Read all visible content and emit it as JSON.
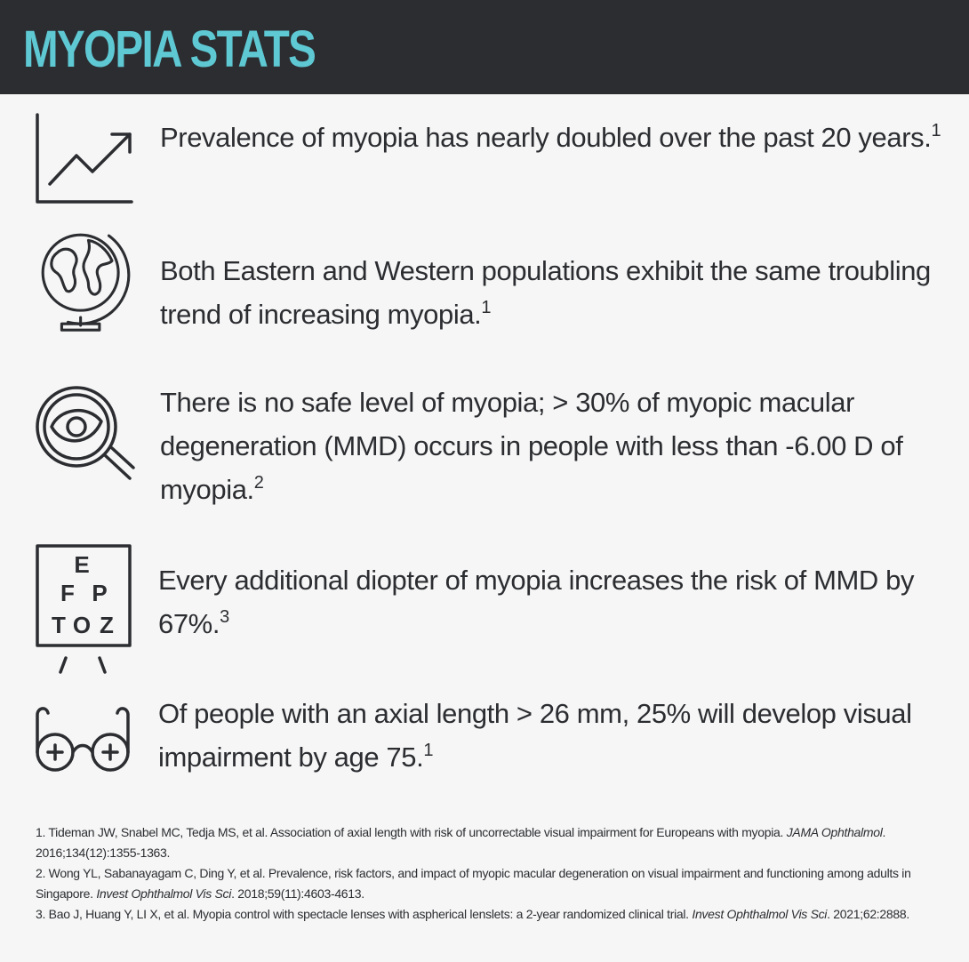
{
  "header": {
    "title": "MYOPIA STATS"
  },
  "items": [
    {
      "text": "Prevalence of myopia has nearly doubled over the past 20 years.",
      "ref": "1"
    },
    {
      "text": "Both Eastern and Western populations exhibit the same troubling trend of increasing myopia.",
      "ref": "1"
    },
    {
      "text": "There is no safe level of myopia; > 30% of myopic macular degeneration (MMD) occurs in people with less than -6.00 D of myopia.",
      "ref": "2"
    },
    {
      "text": "Every additional diopter of myopia increases the risk of MMD by 67%.",
      "ref": "3"
    },
    {
      "text": "Of people with an axial length > 26 mm, 25% will develop visual impairment by age 75.",
      "ref": "1"
    }
  ],
  "eye_chart_letters": [
    "E",
    "F",
    "P",
    "T",
    "O",
    "Z"
  ],
  "references": [
    {
      "text": "1. Tideman JW, Snabel MC, Tedja MS, et al. Association of axial length with risk of uncorrectable visual impairment for Europeans with myopia. ",
      "journal": "JAMA Ophthalmol",
      "citation": ". 2016;134(12):1355-1363."
    },
    {
      "text": "2. Wong YL, Sabanayagam C, Ding Y, et al. Prevalence, risk factors, and impact of myopic macular degeneration on visual impairment and functioning among adults in Singapore. ",
      "journal": "Invest Ophthalmol Vis Sci",
      "citation": ". 2018;59(11):4603-4613."
    },
    {
      "text": "3. Bao J, Huang Y, LI X, et al. Myopia control with spectacle lenses with aspherical lenslets: a 2-year randomized clinical trial. ",
      "journal": "Invest Ophthalmol Vis Sci",
      "citation": ". 2021;62:2888."
    }
  ]
}
